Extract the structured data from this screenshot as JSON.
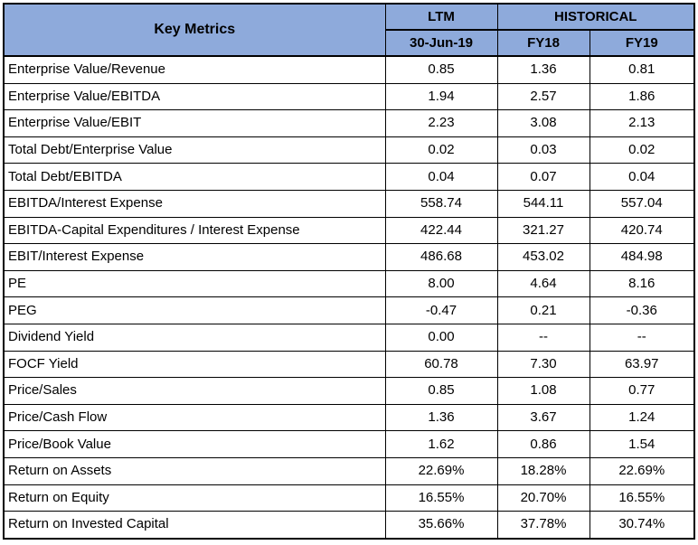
{
  "table": {
    "header": {
      "key_label": "Key Metrics",
      "ltm_label": "LTM",
      "historical_label": "HISTORICAL",
      "ltm_date": "30-Jun-19",
      "fy18": "FY18",
      "fy19": "FY19"
    },
    "rows": [
      {
        "metric": "Enterprise Value/Revenue",
        "ltm": "0.85",
        "fy18": "1.36",
        "fy19": "0.81"
      },
      {
        "metric": "Enterprise Value/EBITDA",
        "ltm": "1.94",
        "fy18": "2.57",
        "fy19": "1.86"
      },
      {
        "metric": "Enterprise Value/EBIT",
        "ltm": "2.23",
        "fy18": "3.08",
        "fy19": "2.13"
      },
      {
        "metric": "Total Debt/Enterprise Value",
        "ltm": "0.02",
        "fy18": "0.03",
        "fy19": "0.02"
      },
      {
        "metric": "Total Debt/EBITDA",
        "ltm": "0.04",
        "fy18": "0.07",
        "fy19": "0.04"
      },
      {
        "metric": "EBITDA/Interest Expense",
        "ltm": "558.74",
        "fy18": "544.11",
        "fy19": "557.04"
      },
      {
        "metric": "EBITDA-Capital Expenditures / Interest Expense",
        "ltm": "422.44",
        "fy18": "321.27",
        "fy19": "420.74"
      },
      {
        "metric": "EBIT/Interest Expense",
        "ltm": "486.68",
        "fy18": "453.02",
        "fy19": "484.98"
      },
      {
        "metric": "PE",
        "ltm": "8.00",
        "fy18": "4.64",
        "fy19": "8.16"
      },
      {
        "metric": "PEG",
        "ltm": "-0.47",
        "fy18": "0.21",
        "fy19": "-0.36"
      },
      {
        "metric": "Dividend Yield",
        "ltm": "0.00",
        "fy18": "--",
        "fy19": "--"
      },
      {
        "metric": "FOCF Yield",
        "ltm": "60.78",
        "fy18": "7.30",
        "fy19": "63.97"
      },
      {
        "metric": "Price/Sales",
        "ltm": "0.85",
        "fy18": "1.08",
        "fy19": "0.77"
      },
      {
        "metric": "Price/Cash Flow",
        "ltm": "1.36",
        "fy18": "3.67",
        "fy19": "1.24"
      },
      {
        "metric": "Price/Book Value",
        "ltm": "1.62",
        "fy18": "0.86",
        "fy19": "1.54"
      },
      {
        "metric": "Return on Assets",
        "ltm": "22.69%",
        "fy18": "18.28%",
        "fy19": "22.69%"
      },
      {
        "metric": "Return on Equity",
        "ltm": "16.55%",
        "fy18": "20.70%",
        "fy19": "16.55%"
      },
      {
        "metric": "Return on Invested Capital",
        "ltm": "35.66%",
        "fy18": "37.78%",
        "fy19": "30.74%"
      }
    ]
  },
  "colors": {
    "header_fill": "#8eaadb",
    "border": "#000000",
    "text": "#000000"
  }
}
